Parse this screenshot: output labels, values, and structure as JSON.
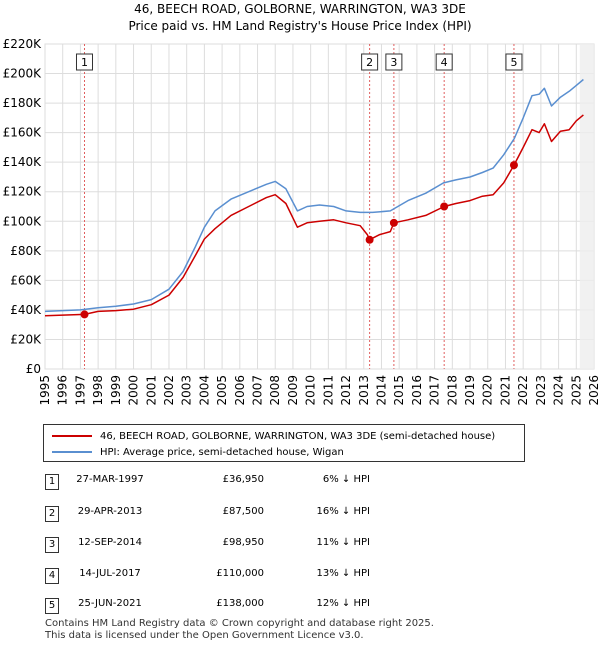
{
  "title_line1": "46, BEECH ROAD, GOLBORNE, WARRINGTON, WA3 3DE",
  "title_line2": "Price paid vs. HM Land Registry's House Price Index (HPI)",
  "chart_data": {
    "type": "line",
    "xlim": [
      1995,
      2026
    ],
    "ylim": [
      0,
      220000
    ],
    "y_ticks": [
      0,
      20000,
      40000,
      60000,
      80000,
      100000,
      120000,
      140000,
      160000,
      180000,
      200000,
      220000
    ],
    "y_tick_labels": [
      "£0",
      "£20K",
      "£40K",
      "£60K",
      "£80K",
      "£100K",
      "£120K",
      "£140K",
      "£160K",
      "£180K",
      "£200K",
      "£220K"
    ],
    "x_ticks": [
      1995,
      1996,
      1997,
      1998,
      1999,
      2000,
      2001,
      2002,
      2003,
      2004,
      2005,
      2006,
      2007,
      2008,
      2009,
      2010,
      2011,
      2012,
      2013,
      2014,
      2015,
      2016,
      2017,
      2018,
      2019,
      2020,
      2021,
      2022,
      2023,
      2024,
      2025,
      2026
    ],
    "x_tick_labels": [
      "1995",
      "1996",
      "1997",
      "1998",
      "1999",
      "2000",
      "2001",
      "2002",
      "2003",
      "2004",
      "2005",
      "2006",
      "2007",
      "2008",
      "2009",
      "2010",
      "2011",
      "2012",
      "2013",
      "2014",
      "2015",
      "2016",
      "2017",
      "2018",
      "2019",
      "2020",
      "2021",
      "2022",
      "2023",
      "2024",
      "2025",
      "2026"
    ],
    "grid": true,
    "projection_start": 2025.2,
    "colors": {
      "property": "#cc0000",
      "hpi": "#5a8fd0",
      "grid": "#dddddd",
      "plot_bg": "#ffffff",
      "marker_line": "#e06060"
    },
    "series": [
      {
        "name": "46, BEECH ROAD, GOLBORNE, WARRINGTON, WA3 3DE (semi-detached house)",
        "x": [
          1995.0,
          1996.0,
          1997.23,
          1998.0,
          1999.0,
          2000.0,
          2001.0,
          2002.0,
          2002.8,
          2003.5,
          2004.0,
          2004.6,
          2005.5,
          2006.5,
          2007.5,
          2008.0,
          2008.6,
          2009.25,
          2009.8,
          2010.5,
          2011.3,
          2012.0,
          2012.8,
          2013.2,
          2013.33,
          2013.9,
          2014.5,
          2014.7,
          2015.5,
          2016.5,
          2017.54,
          2018.2,
          2019.0,
          2019.7,
          2020.3,
          2020.9,
          2021.48,
          2022.0,
          2022.5,
          2022.9,
          2023.2,
          2023.6,
          2024.1,
          2024.6,
          2025.0,
          2025.4
        ],
        "y": [
          36000,
          36500,
          36950,
          39000,
          39500,
          40500,
          43500,
          50000,
          62000,
          77000,
          88000,
          95000,
          104000,
          110000,
          116000,
          118000,
          112000,
          96000,
          99000,
          100000,
          101000,
          99000,
          97000,
          91000,
          87500,
          91000,
          93000,
          98950,
          101000,
          104000,
          110000,
          112000,
          114000,
          117000,
          118000,
          126000,
          138000,
          150000,
          162000,
          160000,
          166000,
          154000,
          161000,
          162000,
          168000,
          172000
        ]
      },
      {
        "name": "HPI: Average price, semi-detached house, Wigan",
        "x": [
          1995.0,
          1996.0,
          1997.0,
          1998.0,
          1999.0,
          2000.0,
          2001.0,
          2002.0,
          2002.8,
          2003.5,
          2004.0,
          2004.6,
          2005.5,
          2006.5,
          2007.5,
          2008.0,
          2008.6,
          2009.25,
          2009.8,
          2010.5,
          2011.3,
          2012.0,
          2012.8,
          2013.5,
          2014.5,
          2015.5,
          2016.5,
          2017.5,
          2018.2,
          2019.0,
          2019.7,
          2020.3,
          2020.9,
          2021.5,
          2022.0,
          2022.5,
          2022.9,
          2023.2,
          2023.6,
          2024.1,
          2024.6,
          2025.0,
          2025.4
        ],
        "y": [
          39000,
          39500,
          40000,
          41500,
          42500,
          44000,
          47000,
          54000,
          66000,
          83000,
          96000,
          107000,
          115000,
          120000,
          125000,
          127000,
          122000,
          107000,
          110000,
          111000,
          110000,
          107000,
          106000,
          106000,
          107000,
          114000,
          119000,
          126000,
          128000,
          130000,
          133000,
          136000,
          145000,
          156000,
          170000,
          185000,
          186000,
          190000,
          178000,
          184000,
          188000,
          192000,
          196000
        ]
      }
    ],
    "sale_markers": [
      {
        "label": "1",
        "x": 1997.23,
        "y": 36950
      },
      {
        "label": "2",
        "x": 2013.33,
        "y": 87500
      },
      {
        "label": "3",
        "x": 2014.7,
        "y": 98950
      },
      {
        "label": "4",
        "x": 2017.54,
        "y": 110000
      },
      {
        "label": "5",
        "x": 2021.48,
        "y": 138000
      }
    ]
  },
  "legend": {
    "property_label": "46, BEECH ROAD, GOLBORNE, WARRINGTON, WA3 3DE (semi-detached house)",
    "hpi_label": "HPI: Average price, semi-detached house, Wigan"
  },
  "sales": [
    {
      "num": "1",
      "date": "27-MAR-1997",
      "price": "£36,950",
      "hpi": "6% ↓ HPI"
    },
    {
      "num": "2",
      "date": "29-APR-2013",
      "price": "£87,500",
      "hpi": "16% ↓ HPI"
    },
    {
      "num": "3",
      "date": "12-SEP-2014",
      "price": "£98,950",
      "hpi": "11% ↓ HPI"
    },
    {
      "num": "4",
      "date": "14-JUL-2017",
      "price": "£110,000",
      "hpi": "13% ↓ HPI"
    },
    {
      "num": "5",
      "date": "25-JUN-2021",
      "price": "£138,000",
      "hpi": "12% ↓ HPI"
    }
  ],
  "footer": {
    "line1": "Contains HM Land Registry data © Crown copyright and database right 2025.",
    "line2": "This data is licensed under the Open Government Licence v3.0."
  }
}
